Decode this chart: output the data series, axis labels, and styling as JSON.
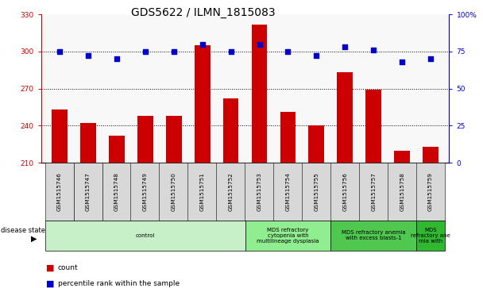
{
  "title": "GDS5622 / ILMN_1815083",
  "samples": [
    "GSM1515746",
    "GSM1515747",
    "GSM1515748",
    "GSM1515749",
    "GSM1515750",
    "GSM1515751",
    "GSM1515752",
    "GSM1515753",
    "GSM1515754",
    "GSM1515755",
    "GSM1515756",
    "GSM1515757",
    "GSM1515758",
    "GSM1515759"
  ],
  "counts": [
    253,
    242,
    232,
    248,
    248,
    305,
    262,
    322,
    251,
    240,
    283,
    269,
    220,
    223
  ],
  "percentile_ranks": [
    75,
    72,
    70,
    75,
    75,
    80,
    75,
    80,
    75,
    72,
    78,
    76,
    68,
    70
  ],
  "ylim_left": [
    210,
    330
  ],
  "ylim_right": [
    0,
    100
  ],
  "yticks_left": [
    210,
    240,
    270,
    300,
    330
  ],
  "yticks_right": [
    0,
    25,
    50,
    75,
    100
  ],
  "bar_color": "#cc0000",
  "dot_color": "#0000cc",
  "tick_bg_color": "#d8d8d8",
  "plot_bg_color": "#f8f8f8",
  "disease_groups": [
    {
      "label": "control",
      "start": 0,
      "end": 7,
      "color": "#c8f0c8"
    },
    {
      "label": "MDS refractory\ncytopenia with\nmultilineage dysplasia",
      "start": 7,
      "end": 10,
      "color": "#90ee90"
    },
    {
      "label": "MDS refractory anemia\nwith excess blasts-1",
      "start": 10,
      "end": 13,
      "color": "#50c850"
    },
    {
      "label": "MDS\nrefractory ane\nmia with",
      "start": 13,
      "end": 14,
      "color": "#30b830"
    }
  ],
  "disease_state_label": "disease state",
  "legend_count_label": "count",
  "legend_percentile_label": "percentile rank within the sample",
  "grid_lines": [
    240,
    270,
    300
  ],
  "title_fontsize": 10,
  "tick_fontsize": 6.5,
  "label_fontsize": 6
}
